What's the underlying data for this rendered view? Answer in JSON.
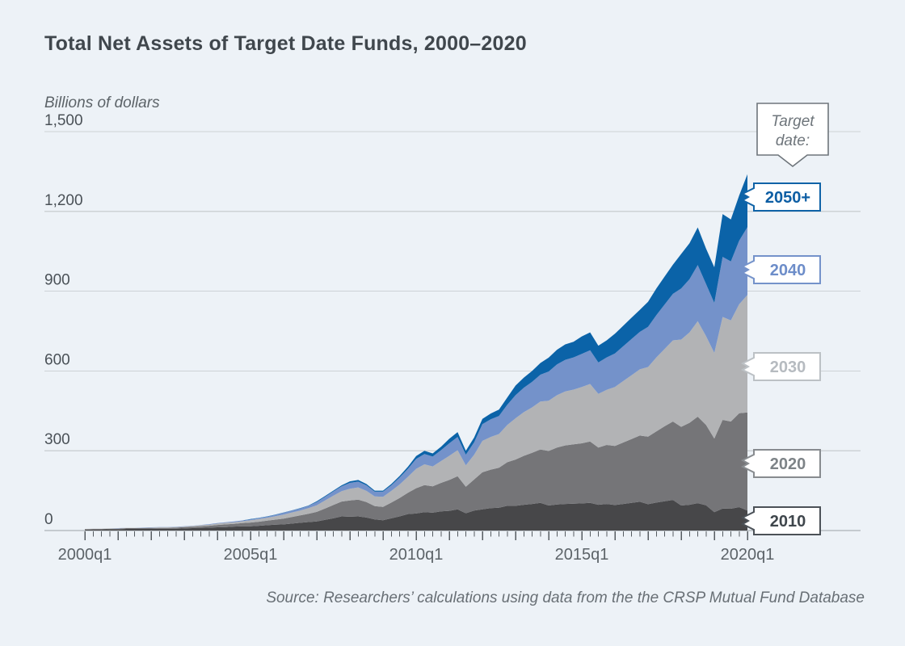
{
  "header": {
    "title": "Total Net Assets of Target Date Funds, 2000–2020"
  },
  "footer": {
    "source": "Source: Researchers’ calculations using data from the the CRSP Mutual Fund Database"
  },
  "target_date_tag": {
    "line1": "Target",
    "line2": "date:",
    "text_color": "#6e757b",
    "border_color": "#6e757b"
  },
  "colors": {
    "background": "#edf2f7",
    "gridline": "#cdd2d6",
    "zero_line": "#9aa1a7",
    "tick": "#565c61",
    "y_tick_text": "#4a5157",
    "x_tick_text": "#5c6368",
    "label_box_fill": "#ffffff"
  },
  "chart_data": {
    "type": "area",
    "stacked": true,
    "title": "Total Net Assets of Target Date Funds, 2000–2020",
    "ylabel": "Billions of dollars",
    "ylim": [
      0,
      1500
    ],
    "grid": true,
    "legend_position": "right",
    "x_unit": "quarter",
    "x_range": [
      "2000q1",
      "2020q1"
    ],
    "quarters_per_point": 1,
    "y_axis": {
      "ticks": [
        {
          "value": 0,
          "label": "0"
        },
        {
          "value": 300,
          "label": "300"
        },
        {
          "value": 600,
          "label": "600"
        },
        {
          "value": 900,
          "label": "900"
        },
        {
          "value": 1200,
          "label": "1,200"
        },
        {
          "value": 1500,
          "label": "1,500"
        }
      ]
    },
    "x_axis": {
      "minor_tick_every_quarters": 1,
      "major_tick_every_quarters": 4,
      "labeled_ticks": [
        {
          "index": 0,
          "label": "2000q1"
        },
        {
          "index": 20,
          "label": "2005q1"
        },
        {
          "index": 40,
          "label": "2010q1"
        },
        {
          "index": 60,
          "label": "2015q1"
        },
        {
          "index": 80,
          "label": "2020q1"
        }
      ]
    },
    "series": [
      {
        "name": "2010",
        "color": "#474749",
        "label": "2010",
        "label_text_color": "#3f464c",
        "label_border_color": "#4b5157",
        "label_center_y": 645,
        "values": [
          3,
          4,
          4,
          5,
          5,
          6,
          6,
          6,
          6,
          7,
          7,
          7,
          8,
          9,
          10,
          11,
          12,
          13,
          15,
          16,
          16,
          18,
          20,
          22,
          23,
          26,
          29,
          32,
          34,
          40,
          46,
          53,
          52,
          53,
          49,
          42,
          39,
          46,
          53,
          62,
          64,
          69,
          67,
          72,
          74,
          80,
          65,
          75,
          80,
          84,
          86,
          93,
          93,
          97,
          100,
          104,
          94,
          98,
          100,
          101,
          102,
          104,
          97,
          100,
          96,
          100,
          104,
          108,
          99,
          105,
          110,
          115,
          94,
          97,
          103,
          95,
          69,
          83,
          82,
          88,
          75
        ]
      },
      {
        "name": "2020",
        "color": "#757578",
        "label": "2020",
        "label_text_color": "#7d8387",
        "label_border_color": "#878b8f",
        "label_center_y": 574,
        "values": [
          2,
          2,
          2,
          2,
          2,
          3,
          3,
          3,
          3,
          3,
          3,
          4,
          5,
          5,
          6,
          7,
          9,
          10,
          10,
          12,
          14,
          15,
          17,
          19,
          22,
          25,
          28,
          31,
          36,
          43,
          50,
          56,
          61,
          63,
          58,
          50,
          50,
          59,
          69,
          80,
          95,
          102,
          99,
          107,
          116,
          124,
          100,
          117,
          139,
          145,
          150,
          164,
          174,
          184,
          192,
          201,
          205,
          214,
          220,
          223,
          226,
          231,
          215,
          222,
          222,
          231,
          240,
          249,
          254,
          268,
          282,
          295,
          296,
          308,
          325,
          302,
          277,
          333,
          328,
          353,
          369
        ]
      },
      {
        "name": "2030",
        "color": "#b2b3b5",
        "label": "2030",
        "label_text_color": "#b6bbc0",
        "label_border_color": "#bcc1c5",
        "label_center_y": 454,
        "values": [
          1,
          1,
          1,
          1,
          1,
          1,
          1,
          1,
          2,
          2,
          2,
          2,
          2,
          3,
          4,
          4,
          5,
          6,
          6,
          7,
          9,
          10,
          11,
          13,
          15,
          17,
          18,
          21,
          25,
          30,
          35,
          39,
          44,
          46,
          42,
          36,
          38,
          44,
          51,
          60,
          73,
          78,
          75,
          82,
          91,
          98,
          80,
          93,
          118,
          123,
          127,
          140,
          155,
          164,
          171,
          180,
          189,
          197,
          203,
          206,
          212,
          216,
          202,
          207,
          222,
          231,
          240,
          249,
          262,
          278,
          291,
          305,
          328,
          340,
          359,
          334,
          322,
          387,
          380,
          410,
          442
        ]
      },
      {
        "name": "2040",
        "color": "#7492ca",
        "label": "2040",
        "label_text_color": "#6d8dc9",
        "label_border_color": "#7492ca",
        "label_center_y": 334,
        "values": [
          0,
          0,
          0,
          0,
          1,
          0,
          0,
          1,
          1,
          1,
          1,
          1,
          1,
          1,
          1,
          2,
          2,
          2,
          3,
          3,
          3,
          4,
          4,
          5,
          7,
          7,
          8,
          9,
          12,
          14,
          16,
          18,
          22,
          22,
          21,
          18,
          19,
          21,
          26,
          30,
          37,
          39,
          37,
          41,
          47,
          50,
          40,
          47,
          63,
          66,
          68,
          76,
          87,
          92,
          96,
          101,
          110,
          116,
          119,
          121,
          124,
          127,
          118,
          122,
          126,
          131,
          136,
          141,
          151,
          159,
          167,
          175,
          192,
          200,
          211,
          196,
          188,
          226,
          222,
          239,
          255
        ]
      },
      {
        "name": "2050+",
        "color": "#0b63a8",
        "label": "2050+",
        "label_text_color": "#0d5ea4",
        "label_border_color": "#0f63a7",
        "label_center_y": 244,
        "values": [
          0,
          0,
          0,
          0,
          0,
          0,
          0,
          0,
          0,
          0,
          0,
          0,
          0,
          0,
          0,
          0,
          0,
          0,
          0,
          0,
          1,
          1,
          1,
          1,
          1,
          1,
          1,
          1,
          3,
          3,
          3,
          4,
          6,
          6,
          5,
          4,
          4,
          5,
          6,
          8,
          11,
          12,
          12,
          13,
          17,
          18,
          15,
          18,
          20,
          22,
          24,
          27,
          36,
          38,
          41,
          44,
          52,
          55,
          58,
          59,
          66,
          67,
          63,
          64,
          74,
          77,
          80,
          83,
          94,
          100,
          105,
          110,
          130,
          135,
          142,
          133,
          134,
          161,
          158,
          170,
          199
        ]
      }
    ]
  }
}
